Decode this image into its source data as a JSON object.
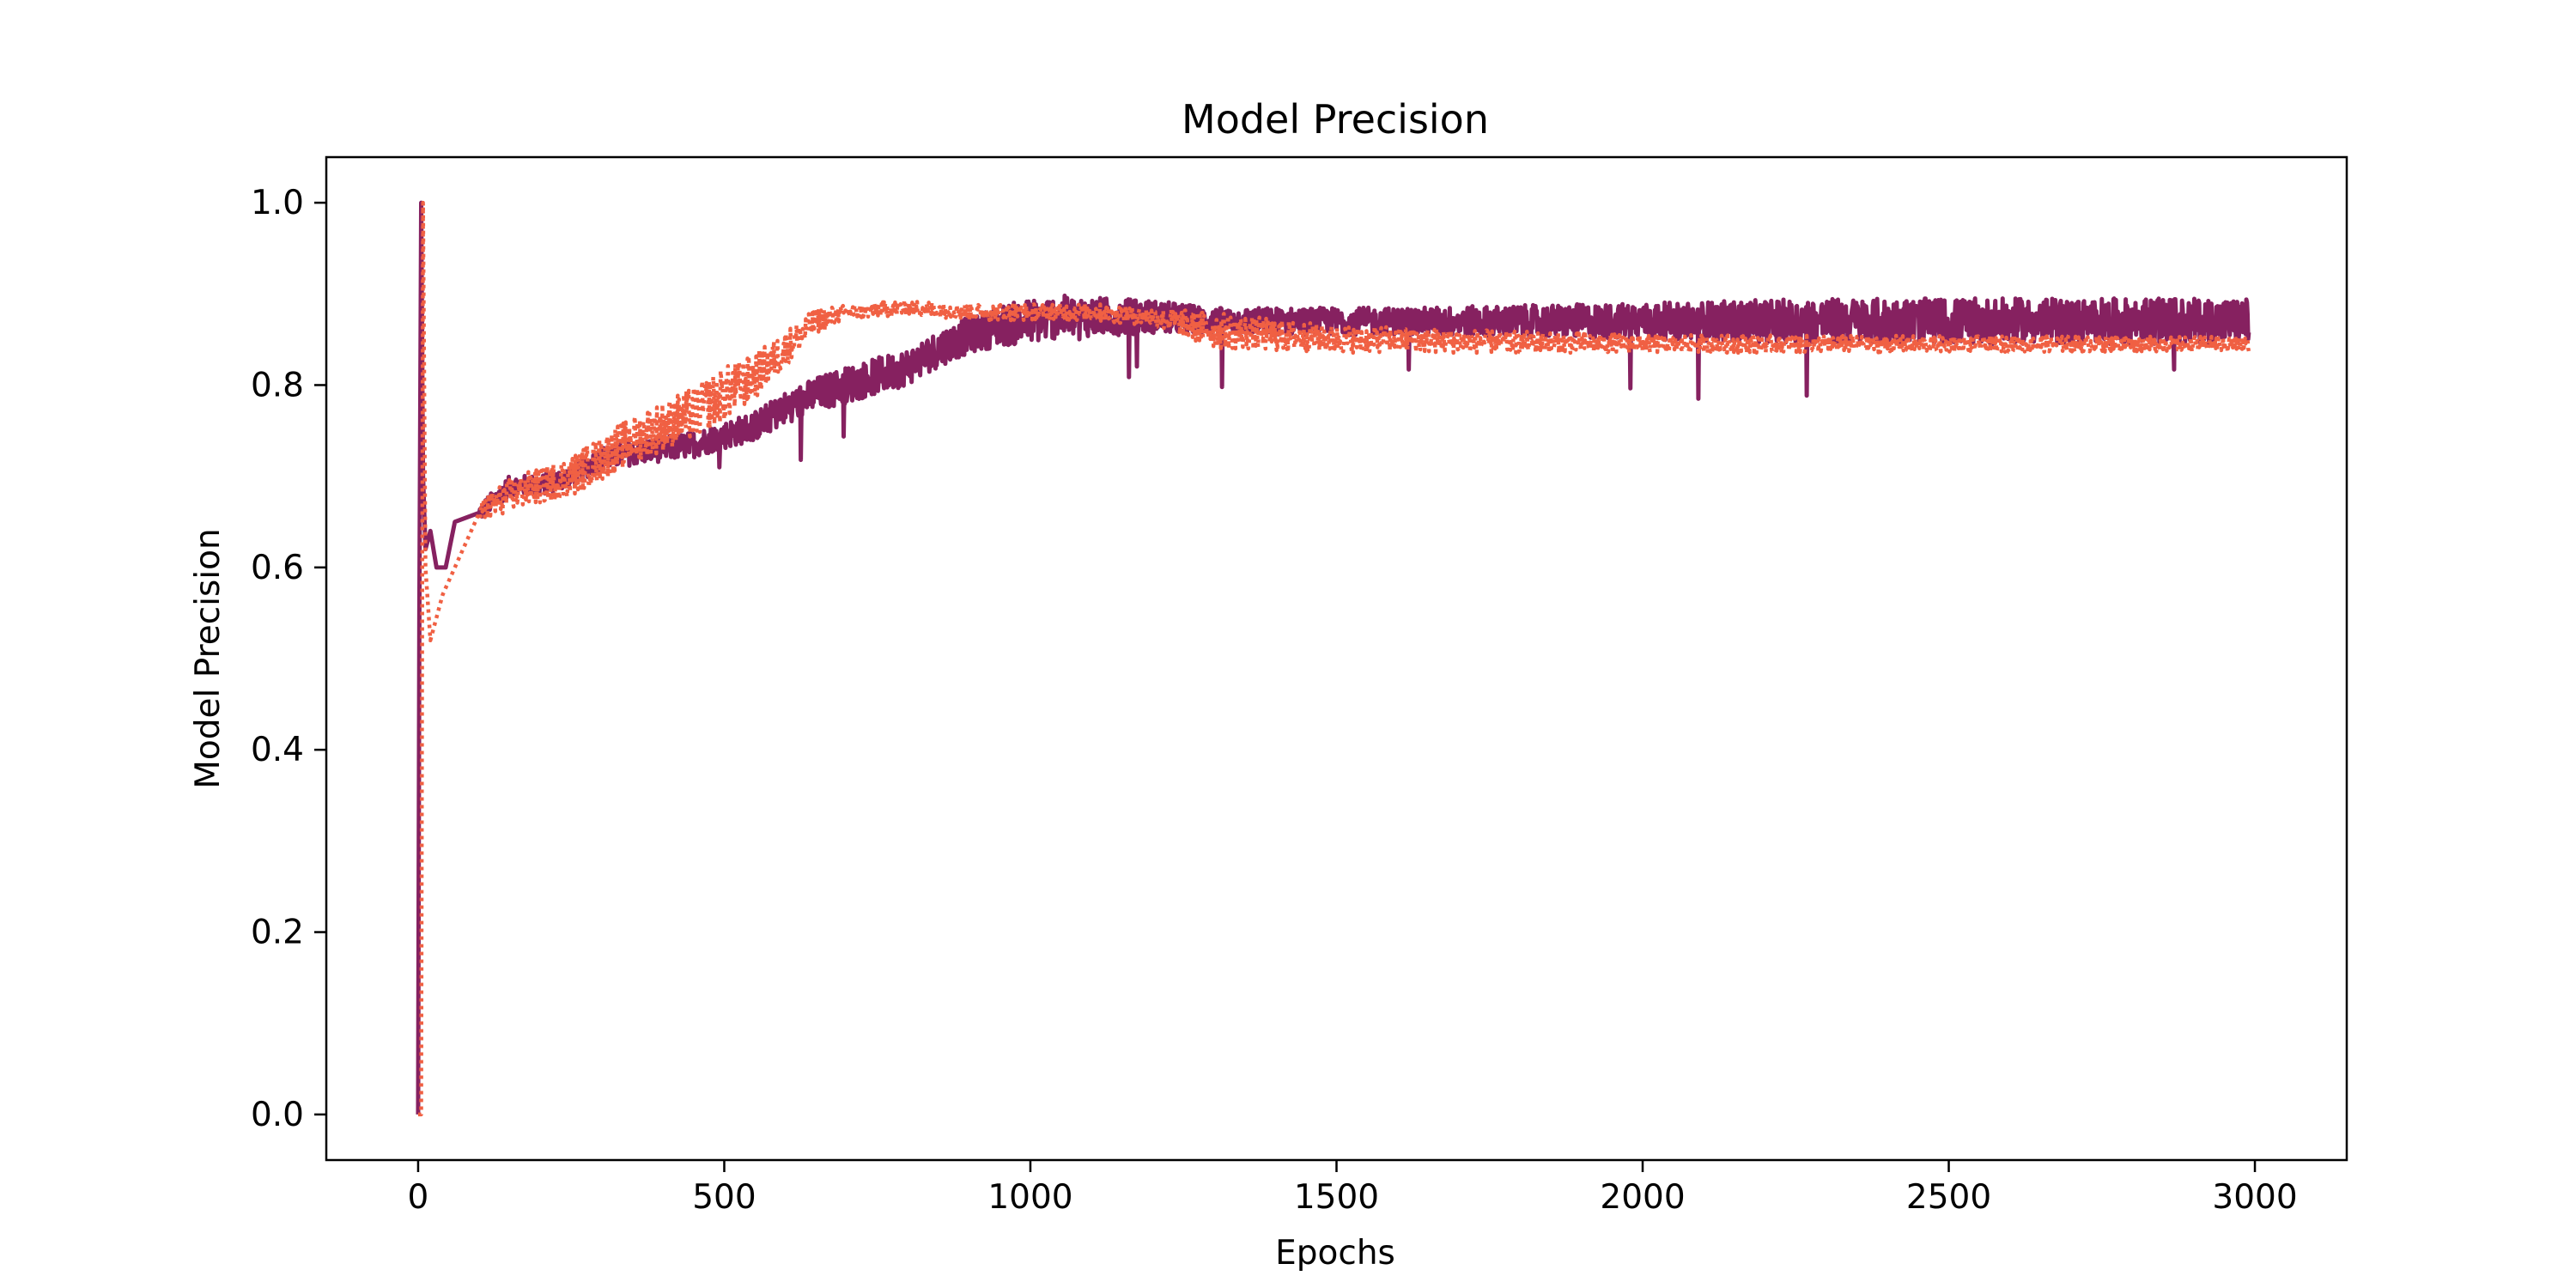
{
  "chart_data": {
    "type": "line",
    "title": "Model Precision",
    "xlabel": "Epochs",
    "ylabel": "Model Precision",
    "xlim": [
      -150,
      3150
    ],
    "ylim": [
      -0.05,
      1.05
    ],
    "xticks": [
      0,
      500,
      1000,
      1500,
      2000,
      2500,
      3000
    ],
    "xtick_labels": [
      "0",
      "500",
      "1000",
      "1500",
      "2000",
      "2500",
      "3000"
    ],
    "yticks": [
      0.0,
      0.2,
      0.4,
      0.6,
      0.8,
      1.0
    ],
    "ytick_labels": [
      "0.0",
      "0.2",
      "0.4",
      "0.6",
      "0.8",
      "1.0"
    ],
    "grid": false,
    "legend": "none",
    "series": [
      {
        "color": "#862160",
        "style": "solid",
        "points": [
          [
            0,
            0.0
          ],
          [
            2,
            0.55
          ],
          [
            5,
            1.0
          ],
          [
            8,
            0.7
          ],
          [
            12,
            0.62
          ],
          [
            20,
            0.64
          ],
          [
            30,
            0.6
          ],
          [
            45,
            0.6
          ],
          [
            60,
            0.65
          ],
          [
            100,
            0.66
          ],
          [
            150,
            0.69
          ],
          [
            200,
            0.69
          ],
          [
            250,
            0.7
          ],
          [
            300,
            0.72
          ],
          [
            350,
            0.725
          ],
          [
            400,
            0.73
          ],
          [
            450,
            0.735
          ],
          [
            500,
            0.745
          ],
          [
            550,
            0.755
          ],
          [
            600,
            0.775
          ],
          [
            650,
            0.79
          ],
          [
            700,
            0.8
          ],
          [
            750,
            0.81
          ],
          [
            800,
            0.82
          ],
          [
            850,
            0.84
          ],
          [
            900,
            0.855
          ],
          [
            950,
            0.865
          ],
          [
            1000,
            0.87
          ],
          [
            1050,
            0.875
          ],
          [
            1100,
            0.875
          ],
          [
            1150,
            0.875
          ],
          [
            1200,
            0.875
          ],
          [
            1300,
            0.87
          ],
          [
            1400,
            0.87
          ],
          [
            1500,
            0.87
          ],
          [
            1600,
            0.87
          ],
          [
            1700,
            0.87
          ],
          [
            1800,
            0.87
          ],
          [
            1900,
            0.87
          ],
          [
            2000,
            0.87
          ],
          [
            2100,
            0.87
          ],
          [
            2200,
            0.87
          ],
          [
            2300,
            0.87
          ],
          [
            2400,
            0.87
          ],
          [
            2500,
            0.87
          ],
          [
            2600,
            0.87
          ],
          [
            2700,
            0.87
          ],
          [
            2800,
            0.87
          ],
          [
            2900,
            0.87
          ],
          [
            2990,
            0.87
          ]
        ],
        "band": [
          [
            100,
            0.01
          ],
          [
            500,
            0.015
          ],
          [
            700,
            0.02
          ],
          [
            900,
            0.02
          ],
          [
            1000,
            0.025
          ],
          [
            1300,
            0.015
          ],
          [
            1600,
            0.015
          ],
          [
            2000,
            0.02
          ],
          [
            2300,
            0.025
          ],
          [
            2600,
            0.025
          ],
          [
            2990,
            0.025
          ]
        ]
      },
      {
        "color": "#f06043",
        "style": "dotted",
        "points": [
          [
            0,
            0.0
          ],
          [
            5,
            0.0
          ],
          [
            8,
            1.0
          ],
          [
            12,
            0.6
          ],
          [
            20,
            0.52
          ],
          [
            40,
            0.57
          ],
          [
            60,
            0.6
          ],
          [
            80,
            0.63
          ],
          [
            100,
            0.66
          ],
          [
            150,
            0.68
          ],
          [
            200,
            0.69
          ],
          [
            250,
            0.7
          ],
          [
            300,
            0.72
          ],
          [
            350,
            0.74
          ],
          [
            400,
            0.755
          ],
          [
            450,
            0.77
          ],
          [
            500,
            0.79
          ],
          [
            550,
            0.81
          ],
          [
            600,
            0.84
          ],
          [
            650,
            0.87
          ],
          [
            700,
            0.88
          ],
          [
            800,
            0.885
          ],
          [
            900,
            0.88
          ],
          [
            1000,
            0.88
          ],
          [
            1100,
            0.88
          ],
          [
            1200,
            0.875
          ],
          [
            1300,
            0.86
          ],
          [
            1400,
            0.855
          ],
          [
            1500,
            0.85
          ],
          [
            1600,
            0.85
          ],
          [
            1700,
            0.848
          ],
          [
            1800,
            0.847
          ],
          [
            1900,
            0.846
          ],
          [
            2000,
            0.845
          ],
          [
            2200,
            0.845
          ],
          [
            2400,
            0.845
          ],
          [
            2600,
            0.845
          ],
          [
            2800,
            0.845
          ],
          [
            2990,
            0.845
          ]
        ],
        "band": [
          [
            100,
            0.015
          ],
          [
            300,
            0.025
          ],
          [
            500,
            0.03
          ],
          [
            600,
            0.02
          ],
          [
            700,
            0.008
          ],
          [
            1200,
            0.01
          ],
          [
            1300,
            0.02
          ],
          [
            1500,
            0.015
          ],
          [
            2000,
            0.01
          ],
          [
            2990,
            0.008
          ]
        ]
      }
    ]
  }
}
